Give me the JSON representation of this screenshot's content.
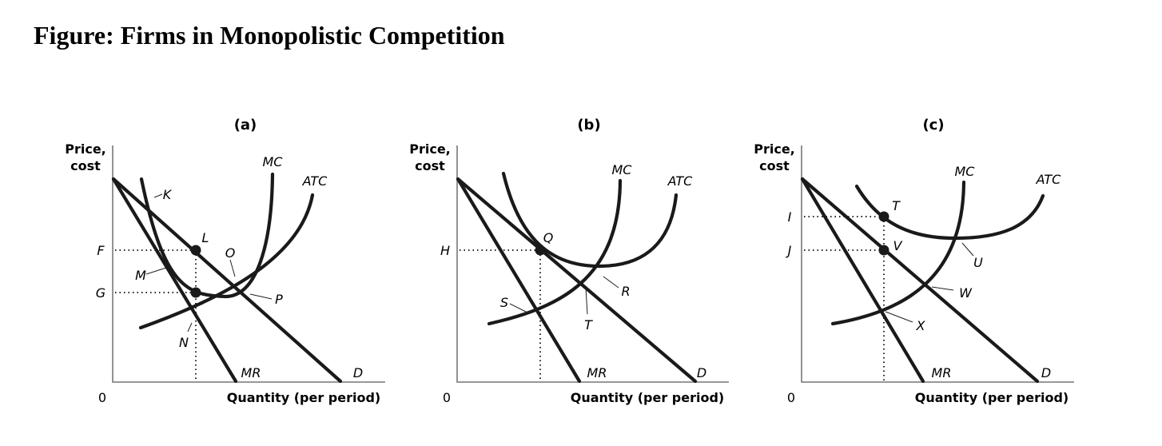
{
  "title": "Figure: Firms in Monopolistic Competition",
  "panels": [
    {
      "id": "a",
      "label": "(a)",
      "y_axis": "Price,\ncost",
      "x_axis": "Quantity (per period)",
      "origin": "0",
      "price_labels": [
        "F",
        "G"
      ],
      "curves": {
        "mc": "MC",
        "atc": "ATC",
        "mr": "MR",
        "d": "D"
      },
      "points": [
        "K",
        "L",
        "M",
        "N",
        "O",
        "P"
      ]
    },
    {
      "id": "b",
      "label": "(b)",
      "y_axis": "Price,\ncost",
      "x_axis": "Quantity (per period)",
      "origin": "0",
      "price_labels": [
        "H"
      ],
      "curves": {
        "mc": "MC",
        "atc": "ATC",
        "mr": "MR",
        "d": "D"
      },
      "points": [
        "Q",
        "R",
        "S",
        "T"
      ]
    },
    {
      "id": "c",
      "label": "(c)",
      "y_axis": "Price,\ncost",
      "x_axis": "Quantity (per period)",
      "origin": "0",
      "price_labels": [
        "I",
        "J"
      ],
      "curves": {
        "mc": "MC",
        "atc": "ATC",
        "mr": "MR",
        "d": "D"
      },
      "points": [
        "T",
        "U",
        "V",
        "W",
        "X"
      ]
    }
  ]
}
